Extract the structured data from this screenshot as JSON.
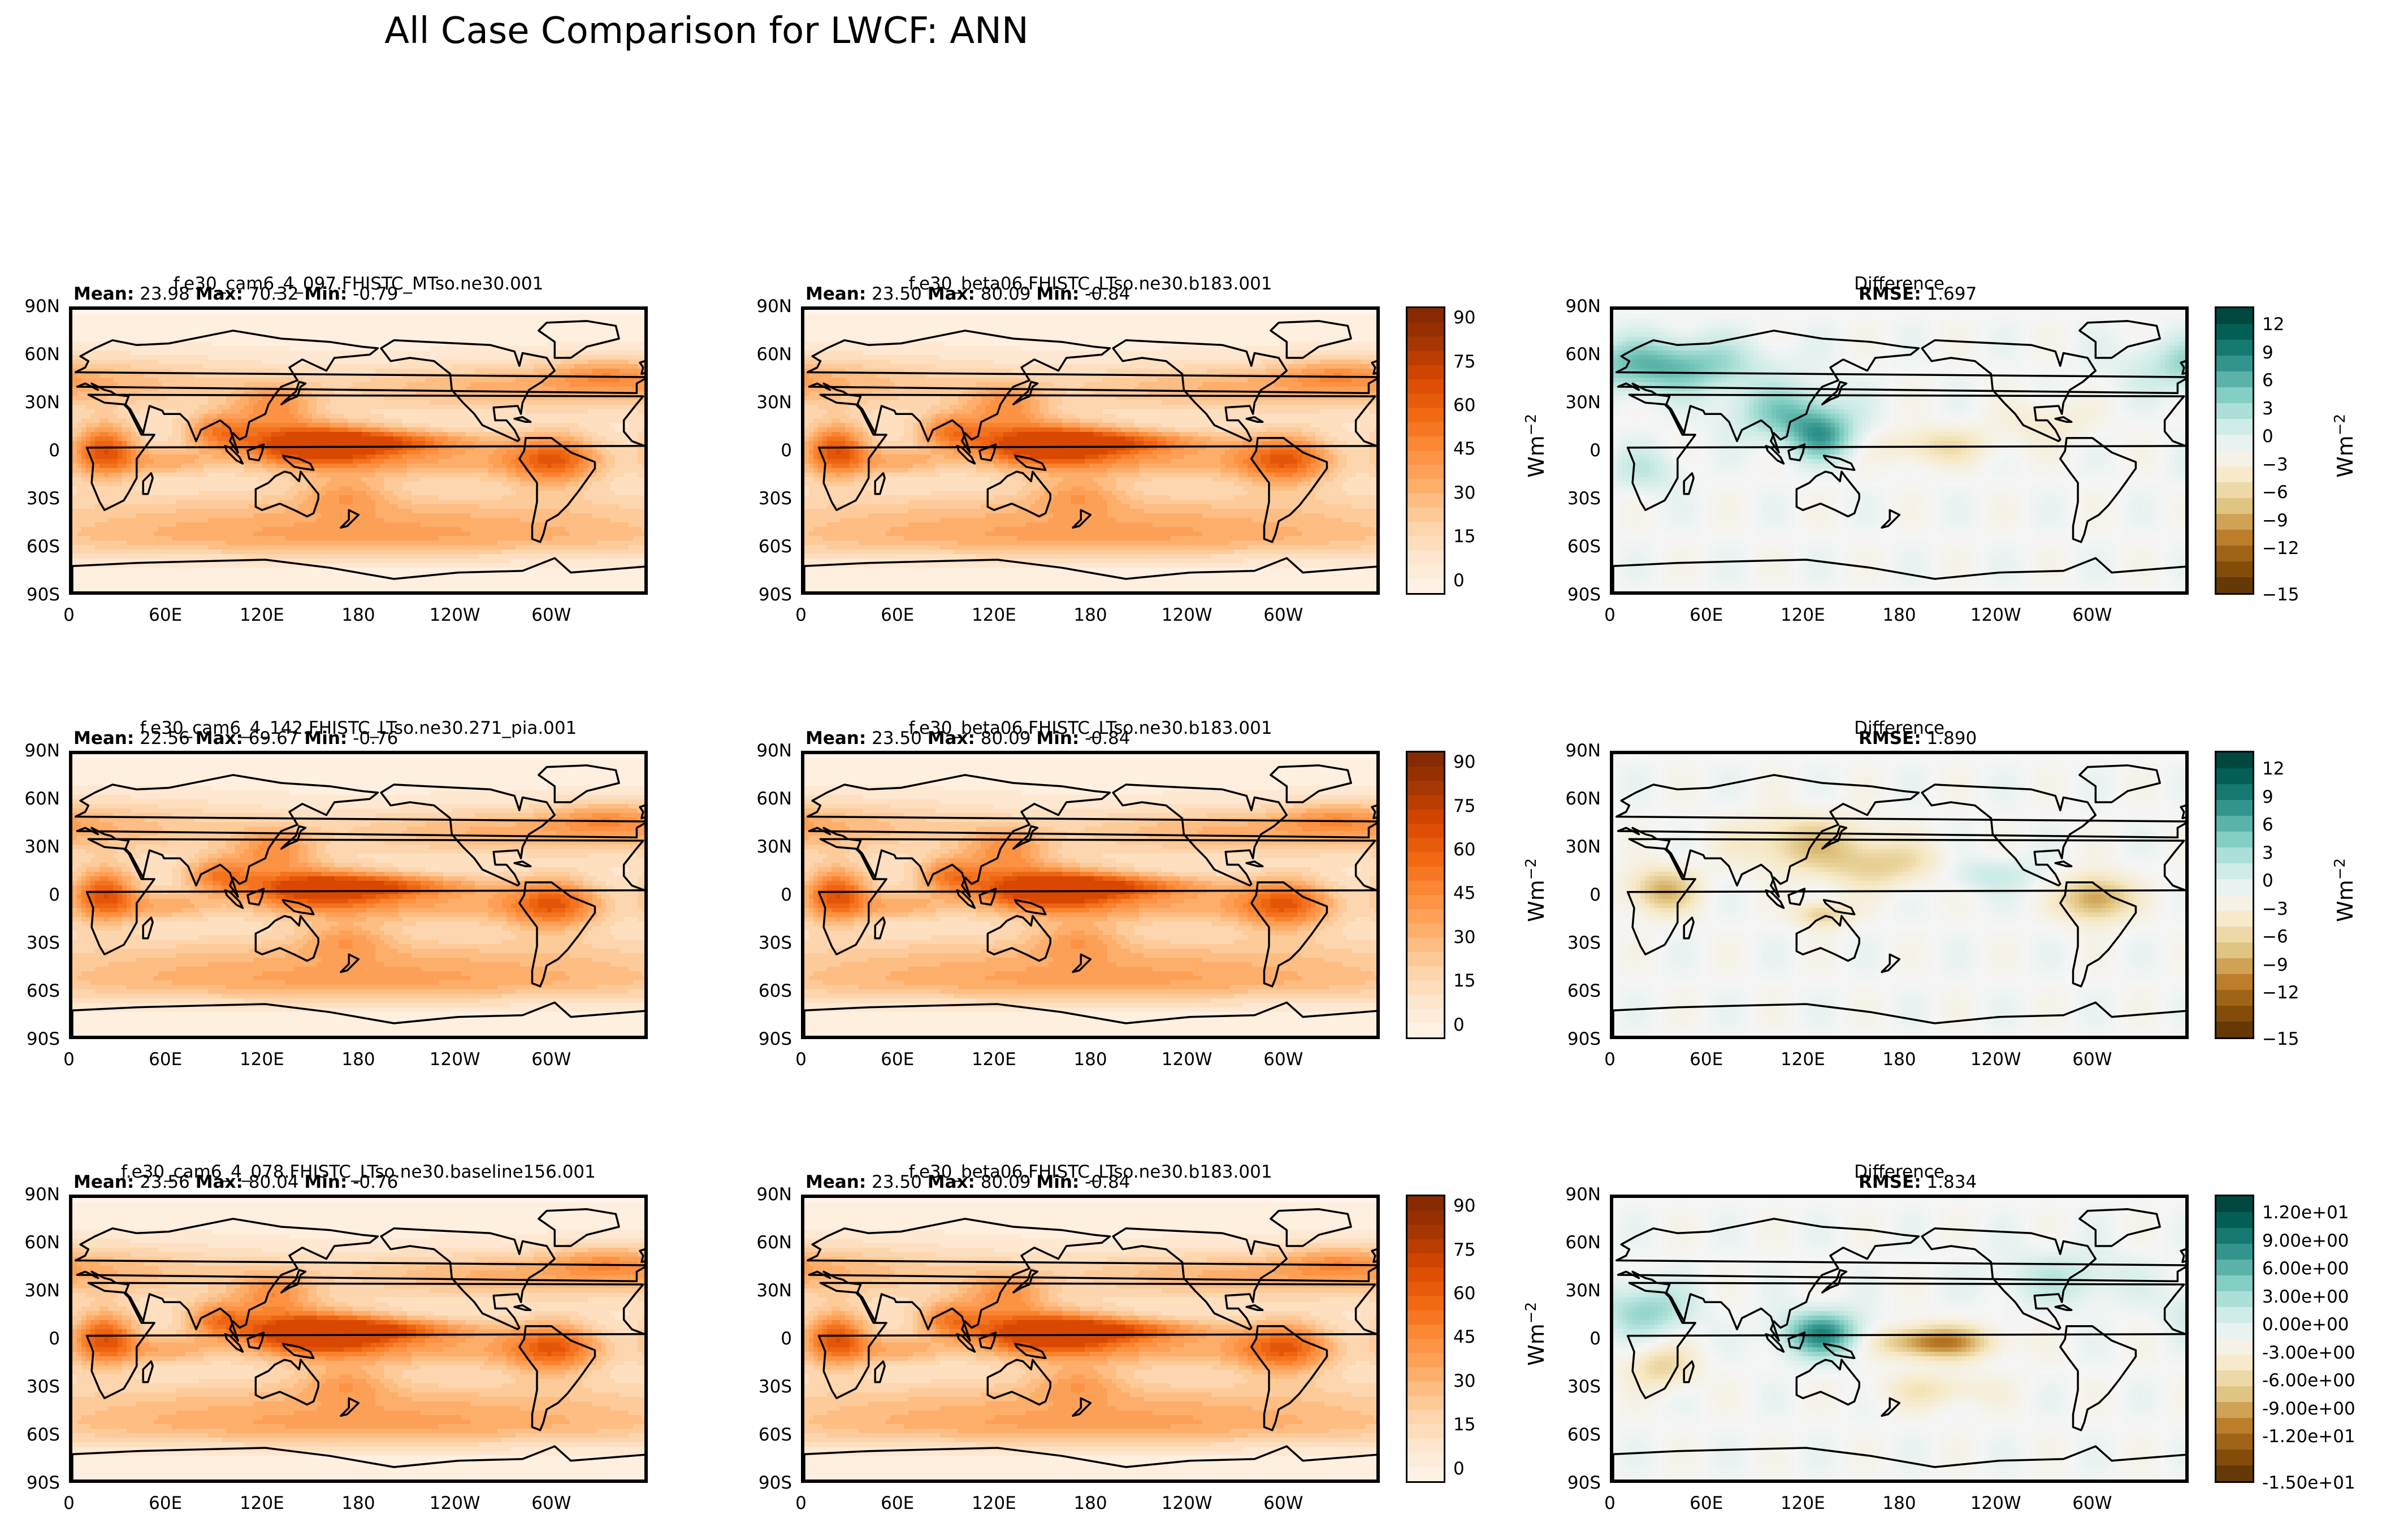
{
  "title": "All Case Comparison for LWCF: ANN",
  "lat_ticks": [
    "90N",
    "60N",
    "30N",
    "0",
    "30S",
    "60S",
    "90S"
  ],
  "lon_ticks": [
    "0",
    "60E",
    "120E",
    "180",
    "120W",
    "60W"
  ],
  "field_colorbar": {
    "ticks": [
      "90",
      "75",
      "60",
      "45",
      "30",
      "15",
      "0"
    ],
    "unit_base": "Wm",
    "unit_exp": "−2",
    "colors": [
      "#fff5eb",
      "#fee6ce",
      "#fdd0a2",
      "#fdae6b",
      "#fd8d3c",
      "#f16913",
      "#d94801",
      "#a63603",
      "#7f2704"
    ]
  },
  "diff_colorbar_a": {
    "ticks": [
      "12",
      "9",
      "6",
      "3",
      "0",
      "−3",
      "−6",
      "−9",
      "−12",
      "−15"
    ],
    "unit_base": "Wm",
    "unit_exp": "−2"
  },
  "diff_colorbar_sci": {
    "ticks": [
      "1.20e+01",
      "9.00e+00",
      "6.00e+00",
      "3.00e+00",
      "0.00e+00",
      "-3.00e+00",
      "-6.00e+00",
      "-9.00e+00",
      "-1.20e+01",
      "-1.50e+01"
    ],
    "unit_base": "Wm",
    "unit_exp": "−2"
  },
  "diff_colors": [
    "#543005",
    "#8c510a",
    "#bf812d",
    "#dfc27d",
    "#f6e8c3",
    "#f5f5f5",
    "#c7eae5",
    "#80cdc1",
    "#35978f",
    "#01665e",
    "#003c30"
  ],
  "stat_labels": {
    "mean": "Mean:",
    "max": "Max:",
    "min": "Min:",
    "rmse": "RMSE:"
  },
  "rows": [
    {
      "test": {
        "title": "f.e30_cam6_4_097.FHISTC_MTso.ne30.001",
        "mean": "23.98",
        "max": "70.32",
        "min": "-0.79"
      },
      "ref": {
        "title": "f.e30_beta06.FHISTC_LTso.ne30.b183.001",
        "mean": "23.50",
        "max": "80.09",
        "min": "-0.84"
      },
      "diff": {
        "title": "Difference",
        "rmse": "1.697"
      }
    },
    {
      "test": {
        "title": "f.e30_cam6_4_142.FHISTC_LTso.ne30.271_pia.001",
        "mean": "22.56",
        "max": "69.67",
        "min": "-0.76"
      },
      "ref": {
        "title": "f.e30_beta06.FHISTC_LTso.ne30.b183.001",
        "mean": "23.50",
        "max": "80.09",
        "min": "-0.84"
      },
      "diff": {
        "title": "Difference",
        "rmse": "1.890"
      }
    },
    {
      "test": {
        "title": "f.e30_cam6_4_078.FHISTC_LTso.ne30.baseline156.001",
        "mean": "23.56",
        "max": "80.04",
        "min": "-0.76"
      },
      "ref": {
        "title": "f.e30_beta06.FHISTC_LTso.ne30.b183.001",
        "mean": "23.50",
        "max": "80.09",
        "min": "-0.84"
      },
      "diff": {
        "title": "Difference",
        "rmse": "1.834"
      }
    }
  ],
  "chart_data": {
    "type": "heatmap",
    "title": "All Case Comparison for LWCF: ANN",
    "variable": "LWCF",
    "season": "ANN",
    "projection": "global lat-lon map with coastlines",
    "x_ticks": [
      "0",
      "60E",
      "120E",
      "180",
      "120W",
      "60W"
    ],
    "y_ticks": [
      "90N",
      "60N",
      "30N",
      "0",
      "30S",
      "60S",
      "90S"
    ],
    "field_colorbar_ticks": [
      90,
      75,
      60,
      45,
      30,
      15,
      0
    ],
    "diff_colorbar_ticks": [
      12,
      9,
      6,
      3,
      0,
      -3,
      -6,
      -9,
      -12,
      -15
    ],
    "unit": "Wm^-2",
    "panels": [
      {
        "row": 1,
        "col": 1,
        "case": "f.e30_cam6_4_097.FHISTC_MTso.ne30.001",
        "mean": 23.98,
        "max": 70.32,
        "min": -0.79
      },
      {
        "row": 1,
        "col": 2,
        "case": "f.e30_beta06.FHISTC_LTso.ne30.b183.001",
        "mean": 23.5,
        "max": 80.09,
        "min": -0.84
      },
      {
        "row": 1,
        "col": 3,
        "case": "Difference",
        "rmse": 1.697
      },
      {
        "row": 2,
        "col": 1,
        "case": "f.e30_cam6_4_142.FHISTC_LTso.ne30.271_pia.001",
        "mean": 22.56,
        "max": 69.67,
        "min": -0.76
      },
      {
        "row": 2,
        "col": 2,
        "case": "f.e30_beta06.FHISTC_LTso.ne30.b183.001",
        "mean": 23.5,
        "max": 80.09,
        "min": -0.84
      },
      {
        "row": 2,
        "col": 3,
        "case": "Difference",
        "rmse": 1.89
      },
      {
        "row": 3,
        "col": 1,
        "case": "f.e30_cam6_4_078.FHISTC_LTso.ne30.baseline156.001",
        "mean": 23.56,
        "max": 80.04,
        "min": -0.76
      },
      {
        "row": 3,
        "col": 2,
        "case": "f.e30_beta06.FHISTC_LTso.ne30.b183.001",
        "mean": 23.5,
        "max": 80.09,
        "min": -0.84
      },
      {
        "row": 3,
        "col": 3,
        "case": "Difference",
        "rmse": 1.834
      }
    ]
  }
}
